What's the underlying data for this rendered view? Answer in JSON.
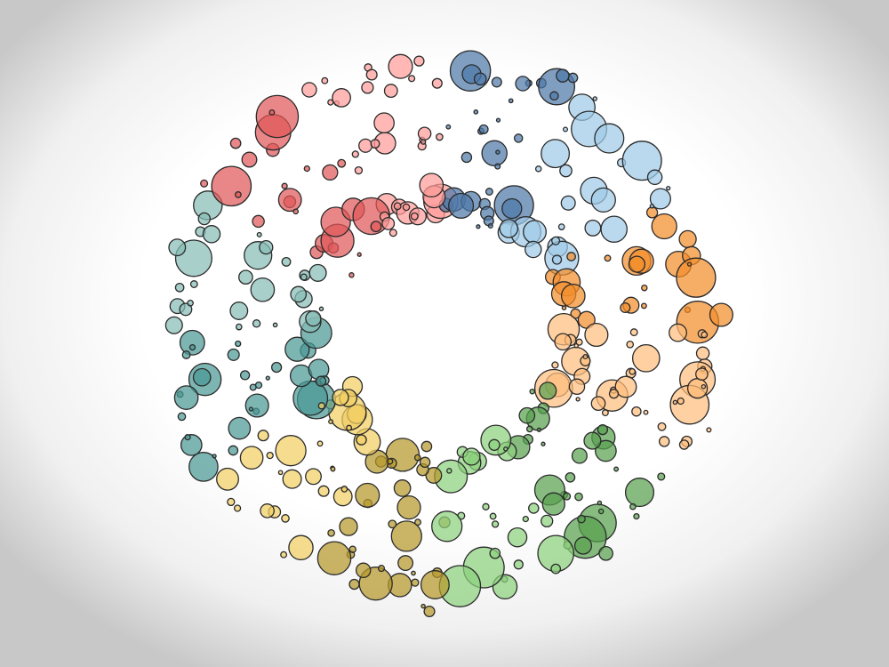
{
  "artwork": {
    "description_free": true,
    "stroke_color": "#2b2b2b",
    "fill_opacity": 0.72,
    "palette": [
      "#4e79a7",
      "#a0cbe8",
      "#f28e2b",
      "#ffbe7d",
      "#59a14f",
      "#8cd17d",
      "#b6992d",
      "#f1ce63",
      "#499894",
      "#86bcb6",
      "#e15759",
      "#ff9d9a"
    ],
    "rings": [
      {
        "name": "inner",
        "count": 80,
        "jitter": 0.06,
        "size_range": [
          5,
          22
        ]
      },
      {
        "name": "middle",
        "count": 75,
        "jitter": 0.1,
        "size_range": [
          3,
          18
        ]
      },
      {
        "name": "outer",
        "count": 90,
        "jitter": 0.12,
        "size_range": [
          3,
          24
        ]
      }
    ]
  }
}
